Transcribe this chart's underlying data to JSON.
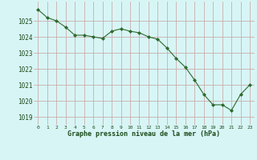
{
  "x": [
    0,
    1,
    2,
    3,
    4,
    5,
    6,
    7,
    8,
    9,
    10,
    11,
    12,
    13,
    14,
    15,
    16,
    17,
    18,
    19,
    20,
    21,
    22,
    23
  ],
  "y": [
    1025.7,
    1025.2,
    1025.0,
    1024.6,
    1024.1,
    1024.1,
    1024.0,
    1023.9,
    1024.35,
    1024.5,
    1024.35,
    1024.25,
    1024.0,
    1023.85,
    1023.3,
    1022.65,
    1022.1,
    1021.3,
    1020.4,
    1019.75,
    1019.75,
    1019.4,
    1020.4,
    1021.0
  ],
  "line_color": "#2d6a2d",
  "marker_color": "#2d6a2d",
  "bg_color": "#d8f5f5",
  "grid_color": "#c8a0a0",
  "xlabel": "Graphe pression niveau de la mer (hPa)",
  "xlabel_color": "#1a4a1a",
  "tick_color": "#1a4a1a",
  "ylim": [
    1018.5,
    1026.2
  ],
  "xlim": [
    -0.5,
    23.5
  ],
  "yticks": [
    1019,
    1020,
    1021,
    1022,
    1023,
    1024,
    1025
  ],
  "xticks": [
    0,
    1,
    2,
    3,
    4,
    5,
    6,
    7,
    8,
    9,
    10,
    11,
    12,
    13,
    14,
    15,
    16,
    17,
    18,
    19,
    20,
    21,
    22,
    23
  ],
  "figsize": [
    3.2,
    2.0
  ],
  "dpi": 100
}
